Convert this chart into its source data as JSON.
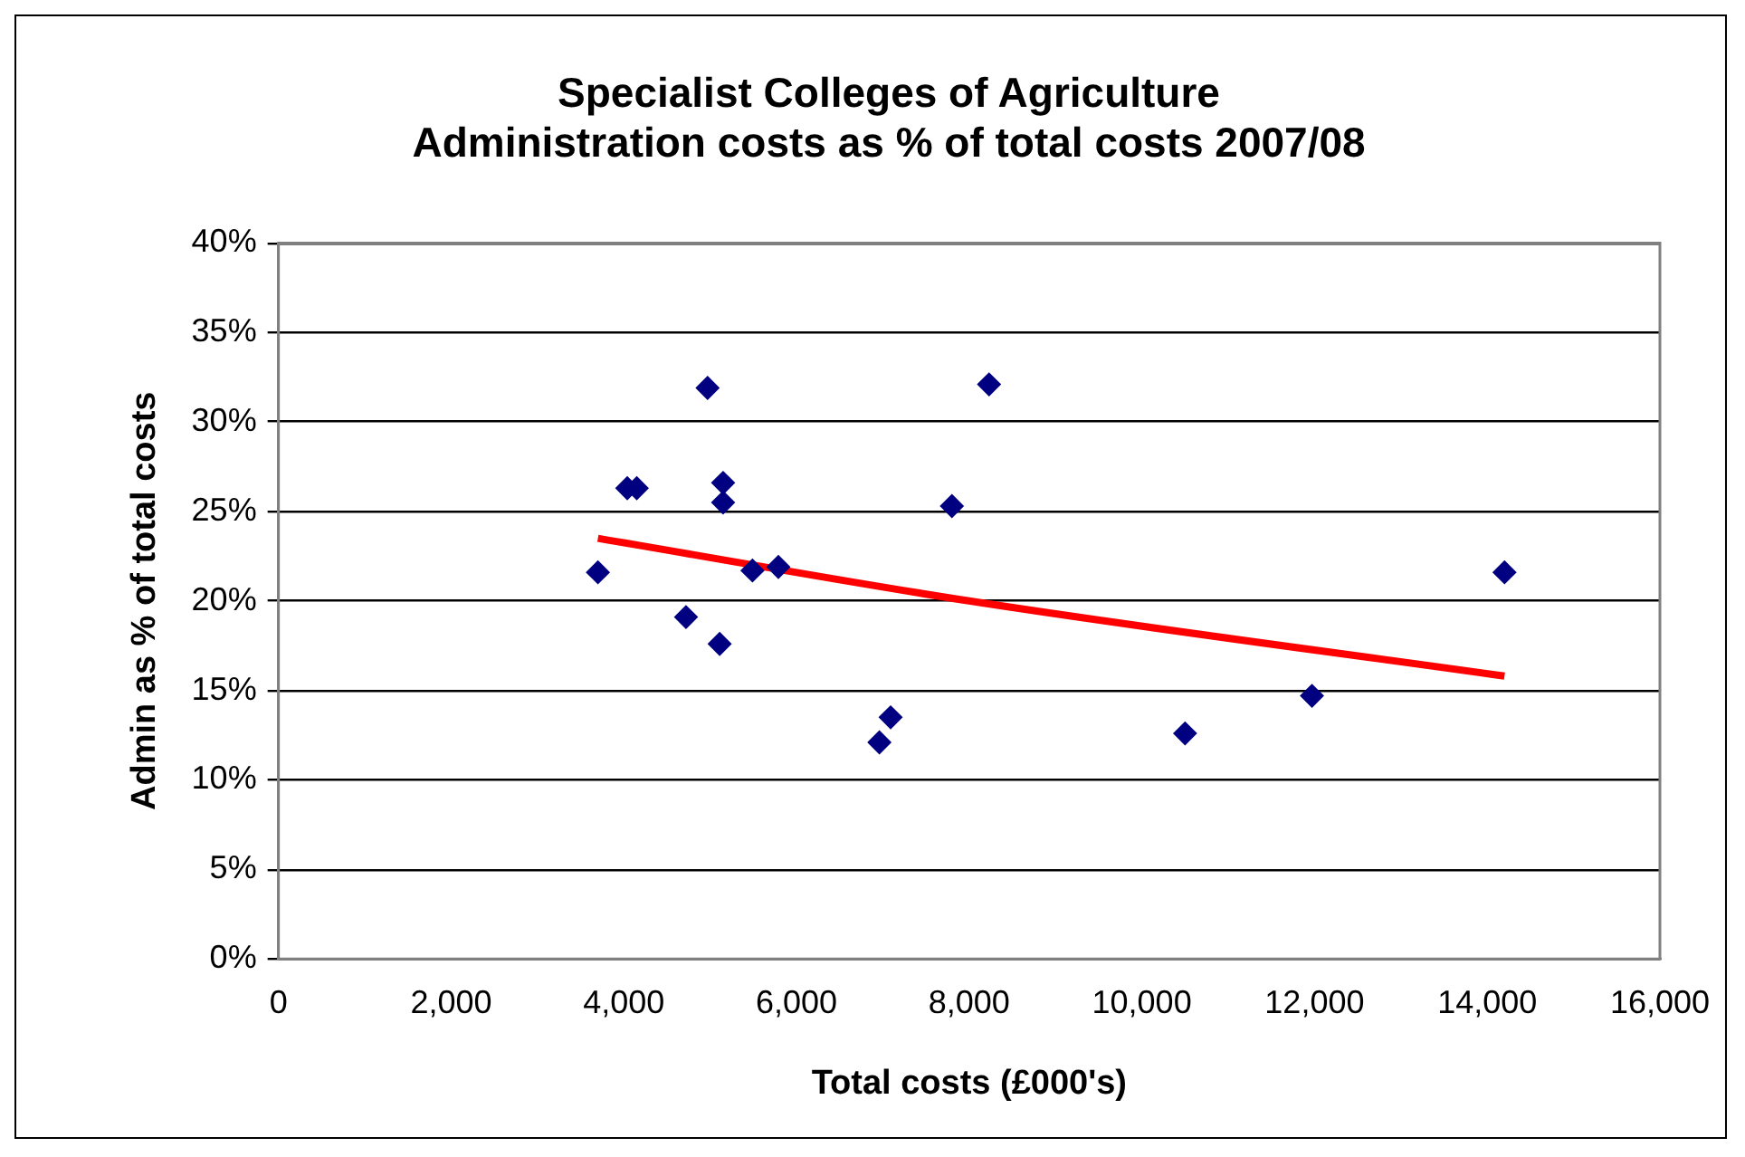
{
  "chart_data": {
    "type": "scatter",
    "title": "Specialist Colleges of Agriculture\nAdministration costs as % of total costs 2007/08",
    "xlabel": "Total costs (£000's)",
    "ylabel": "Admin as % of total costs",
    "xlim": [
      0,
      16000
    ],
    "xticks": [
      0,
      {
        "value": 2000,
        "label": "2,000"
      },
      {
        "value": 4000,
        "label": "4,000"
      },
      {
        "value": 6000,
        "label": "6,000"
      },
      {
        "value": 8000,
        "label": "8,000"
      },
      {
        "value": 10000,
        "label": "10,000"
      },
      {
        "value": 12000,
        "label": "12,000"
      },
      {
        "value": 14000,
        "label": "14,000"
      },
      {
        "value": 16000,
        "label": "16,000"
      }
    ],
    "ylim": [
      0,
      40
    ],
    "yticks": [
      {
        "value": 0,
        "label": "0%"
      },
      {
        "value": 5,
        "label": "5%"
      },
      {
        "value": 10,
        "label": "10%"
      },
      {
        "value": 15,
        "label": "15%"
      },
      {
        "value": 20,
        "label": "20%"
      },
      {
        "value": 25,
        "label": "25%"
      },
      {
        "value": 30,
        "label": "30%"
      },
      {
        "value": 35,
        "label": "35%"
      },
      {
        "value": 40,
        "label": "40%"
      }
    ],
    "grid": "y",
    "legend": false,
    "series": [
      {
        "type": "scatter",
        "color": "#000080",
        "marker": "diamond",
        "x": [
          3700,
          4040,
          4150,
          4970,
          5150,
          5150,
          4720,
          5110,
          5490,
          5790,
          6960,
          7090,
          7800,
          8230,
          10500,
          11970,
          14200
        ],
        "values": [
          21.6,
          26.3,
          26.3,
          31.9,
          26.6,
          25.5,
          19.1,
          17.6,
          21.7,
          21.9,
          12.1,
          13.5,
          25.3,
          32.1,
          12.6,
          14.7,
          21.6
        ]
      },
      {
        "type": "line",
        "color": "#ff0000",
        "marker": "none",
        "line_style": "solid",
        "x": [
          3700,
          8000,
          14200
        ],
        "values": [
          23.5,
          20.0,
          15.8
        ]
      }
    ]
  }
}
